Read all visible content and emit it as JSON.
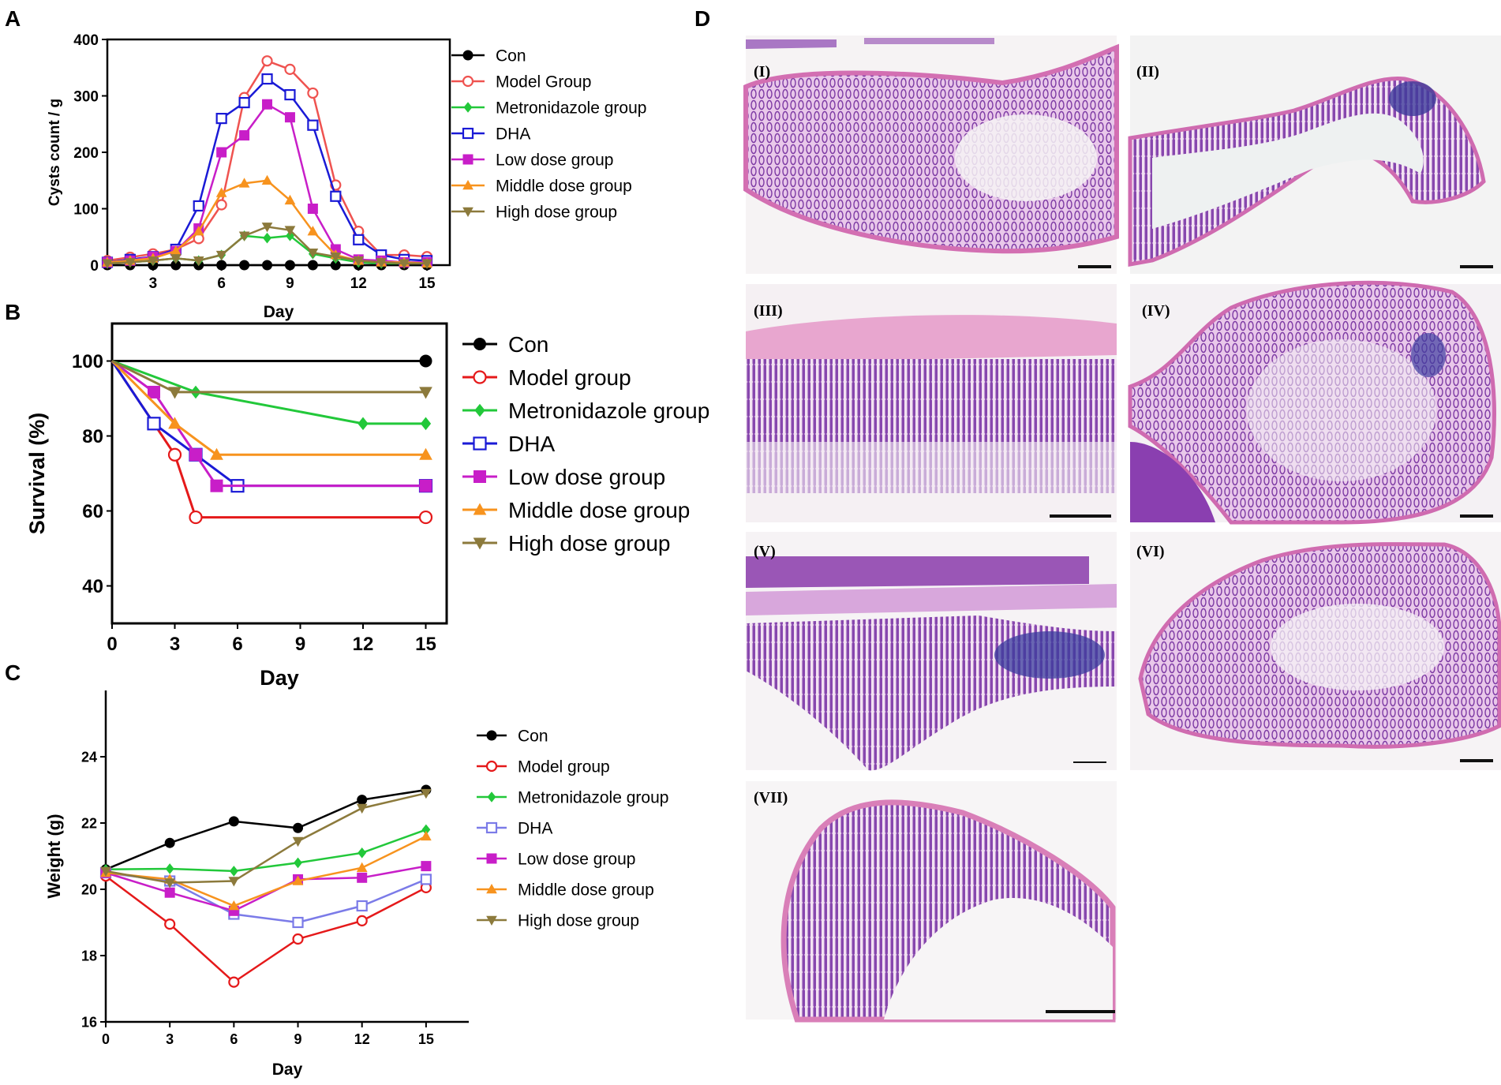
{
  "panels": {
    "A": "A",
    "B": "B",
    "C": "C",
    "D": "D"
  },
  "colors": {
    "con": "#000000",
    "model": "#ef5350",
    "model_b": "#e5191a",
    "metronidazole": "#22c83a",
    "dha": "#1a1ad6",
    "dha_c": "#7b7be8",
    "low": "#c81ec8",
    "middle": "#f7931e",
    "high": "#8c7a3c"
  },
  "chart_data": [
    {
      "id": "A",
      "type": "line",
      "xlabel": "Day",
      "ylabel": "Cysts count / g",
      "xlim": [
        1,
        16
      ],
      "ylim": [
        0,
        400
      ],
      "xticks": [
        3,
        6,
        9,
        12,
        15
      ],
      "yticks": [
        0,
        100,
        200,
        300,
        400
      ],
      "series": [
        {
          "name": "Con",
          "marker": "filled-circle",
          "color": "#000000",
          "x": [
            1,
            2,
            3,
            4,
            5,
            6,
            7,
            8,
            9,
            10,
            11,
            12,
            13,
            14,
            15
          ],
          "y": [
            0,
            0,
            0,
            0,
            0,
            0,
            0,
            0,
            0,
            0,
            0,
            0,
            0,
            0,
            0
          ]
        },
        {
          "name": "Model Group",
          "marker": "open-circle",
          "color": "#ef5350",
          "x": [
            1,
            2,
            3,
            4,
            5,
            6,
            7,
            8,
            9,
            10,
            11,
            12,
            13,
            14,
            15
          ],
          "y": [
            8,
            14,
            20,
            28,
            47,
            107,
            297,
            362,
            347,
            305,
            142,
            60,
            18,
            18,
            15
          ]
        },
        {
          "name": "Metronidazole group",
          "marker": "filled-diamond",
          "color": "#22c83a",
          "x": [
            1,
            2,
            3,
            4,
            5,
            6,
            7,
            8,
            9,
            10,
            11,
            12,
            13,
            14,
            15
          ],
          "y": [
            3,
            5,
            8,
            12,
            8,
            18,
            52,
            48,
            52,
            20,
            12,
            5,
            3,
            3,
            3
          ]
        },
        {
          "name": "DHA",
          "marker": "open-square",
          "color": "#1a1ad6",
          "x": [
            1,
            2,
            3,
            4,
            5,
            6,
            7,
            8,
            9,
            10,
            11,
            12,
            13,
            14,
            15
          ],
          "y": [
            5,
            10,
            15,
            28,
            105,
            260,
            288,
            330,
            302,
            248,
            122,
            45,
            18,
            10,
            8
          ]
        },
        {
          "name": "Low dose group",
          "marker": "filled-square",
          "color": "#c81ec8",
          "x": [
            1,
            2,
            3,
            4,
            5,
            6,
            7,
            8,
            9,
            10,
            11,
            12,
            13,
            14,
            15
          ],
          "y": [
            5,
            8,
            15,
            25,
            65,
            200,
            230,
            285,
            262,
            100,
            28,
            10,
            8,
            5,
            5
          ]
        },
        {
          "name": "Middle dose group",
          "marker": "filled-triangle-up",
          "color": "#f7931e",
          "x": [
            1,
            2,
            3,
            4,
            5,
            6,
            7,
            8,
            9,
            10,
            11,
            12,
            13,
            14,
            15
          ],
          "y": [
            5,
            8,
            12,
            25,
            60,
            128,
            145,
            150,
            115,
            60,
            18,
            8,
            5,
            5,
            3
          ]
        },
        {
          "name": "High dose group",
          "marker": "filled-triangle-down",
          "color": "#8c7a3c",
          "x": [
            1,
            2,
            3,
            4,
            5,
            6,
            7,
            8,
            9,
            10,
            11,
            12,
            13,
            14,
            15
          ],
          "y": [
            3,
            5,
            8,
            12,
            8,
            18,
            52,
            68,
            62,
            22,
            15,
            8,
            5,
            3,
            3
          ]
        }
      ]
    },
    {
      "id": "B",
      "type": "line",
      "xlabel": "Day",
      "ylabel": "Survival  (%)",
      "xlim": [
        0,
        16
      ],
      "ylim": [
        30,
        110
      ],
      "xticks": [
        0,
        3,
        6,
        9,
        12,
        15
      ],
      "yticks": [
        40,
        60,
        80,
        100
      ],
      "series": [
        {
          "name": "Con",
          "marker": "filled-circle",
          "color": "#000000",
          "x": [
            0,
            15
          ],
          "y": [
            100,
            100
          ],
          "markers_at": [
            15
          ]
        },
        {
          "name": "Model group",
          "marker": "open-circle",
          "color": "#e5191a",
          "x": [
            0,
            3,
            4,
            15
          ],
          "y": [
            100,
            75,
            58.3,
            58.3
          ],
          "markers_at": [
            3,
            4,
            15
          ]
        },
        {
          "name": "Metronidazole group",
          "marker": "filled-diamond",
          "color": "#22c83a",
          "x": [
            0,
            4,
            12,
            15
          ],
          "y": [
            100,
            91.7,
            83.3,
            83.3
          ],
          "markers_at": [
            4,
            12,
            15
          ]
        },
        {
          "name": "DHA",
          "marker": "open-square",
          "color": "#1a1ad6",
          "x": [
            0,
            2,
            4,
            6,
            15
          ],
          "y": [
            100,
            83.3,
            75,
            66.7,
            66.7
          ],
          "markers_at": [
            2,
            4,
            6,
            15
          ]
        },
        {
          "name": "Low dose group",
          "marker": "filled-square",
          "color": "#c81ec8",
          "x": [
            0,
            2,
            4,
            5,
            15
          ],
          "y": [
            100,
            91.7,
            75,
            66.7,
            66.7
          ],
          "markers_at": [
            2,
            4,
            5,
            15
          ]
        },
        {
          "name": "Middle dose group",
          "marker": "filled-triangle-up",
          "color": "#f7931e",
          "x": [
            0,
            3,
            5,
            15
          ],
          "y": [
            100,
            83.3,
            75,
            75
          ],
          "markers_at": [
            3,
            5,
            15
          ]
        },
        {
          "name": " High dose group",
          "marker": "filled-triangle-down",
          "color": "#8c7a3c",
          "x": [
            0,
            3,
            15
          ],
          "y": [
            100,
            91.7,
            91.7
          ],
          "markers_at": [
            3,
            15
          ]
        }
      ]
    },
    {
      "id": "C",
      "type": "line",
      "xlabel": "Day",
      "ylabel": "Weight (g)",
      "xlim": [
        0,
        17
      ],
      "ylim": [
        16,
        26
      ],
      "xticks": [
        0,
        3,
        6,
        9,
        12,
        15
      ],
      "yticks": [
        16,
        18,
        20,
        22,
        24
      ],
      "series": [
        {
          "name": "Con",
          "marker": "filled-circle",
          "color": "#000000",
          "x": [
            0,
            3,
            6,
            9,
            12,
            15
          ],
          "y": [
            20.6,
            21.4,
            22.05,
            21.85,
            22.7,
            23.0
          ]
        },
        {
          "name": "Model group",
          "marker": "open-circle",
          "color": "#e5191a",
          "x": [
            0,
            3,
            6,
            9,
            12,
            15
          ],
          "y": [
            20.4,
            18.95,
            17.2,
            18.5,
            19.05,
            20.05
          ]
        },
        {
          "name": "Metronidazole group",
          "marker": "filled-diamond",
          "color": "#22c83a",
          "x": [
            0,
            3,
            6,
            9,
            12,
            15
          ],
          "y": [
            20.6,
            20.62,
            20.55,
            20.8,
            21.1,
            21.8
          ]
        },
        {
          "name": "DHA",
          "marker": "open-square",
          "color": "#7b7be8",
          "x": [
            0,
            3,
            6,
            9,
            12,
            15
          ],
          "y": [
            20.5,
            20.25,
            19.25,
            19.0,
            19.5,
            20.3
          ]
        },
        {
          "name": "Low dose group",
          "marker": "filled-square",
          "color": "#c81ec8",
          "x": [
            0,
            3,
            6,
            9,
            12,
            15
          ],
          "y": [
            20.5,
            19.9,
            19.35,
            20.3,
            20.35,
            20.7
          ]
        },
        {
          "name": "Middle dose group",
          "marker": "filled-triangle-up",
          "color": "#f7931e",
          "x": [
            0,
            3,
            6,
            9,
            12,
            15
          ],
          "y": [
            20.5,
            20.3,
            19.5,
            20.25,
            20.65,
            21.6
          ]
        },
        {
          "name": "High dose group",
          "marker": "filled-triangle-down",
          "color": "#8c7a3c",
          "x": [
            0,
            3,
            6,
            9,
            12,
            15
          ],
          "y": [
            20.55,
            20.2,
            20.25,
            21.45,
            22.45,
            22.9
          ]
        }
      ]
    }
  ],
  "histology": {
    "images": [
      {
        "label": "(I)",
        "section": "longitudinal-thick"
      },
      {
        "label": "(II)",
        "section": "curved-thin"
      },
      {
        "label": "(III)",
        "section": "villi-closeup"
      },
      {
        "label": "(IV)",
        "section": "round-section"
      },
      {
        "label": "(V)",
        "section": "longitudinal-with-muscle"
      },
      {
        "label": "(VI)",
        "section": "longitudinal-thick"
      },
      {
        "label": "(VII)",
        "section": "villi-fan"
      }
    ]
  }
}
